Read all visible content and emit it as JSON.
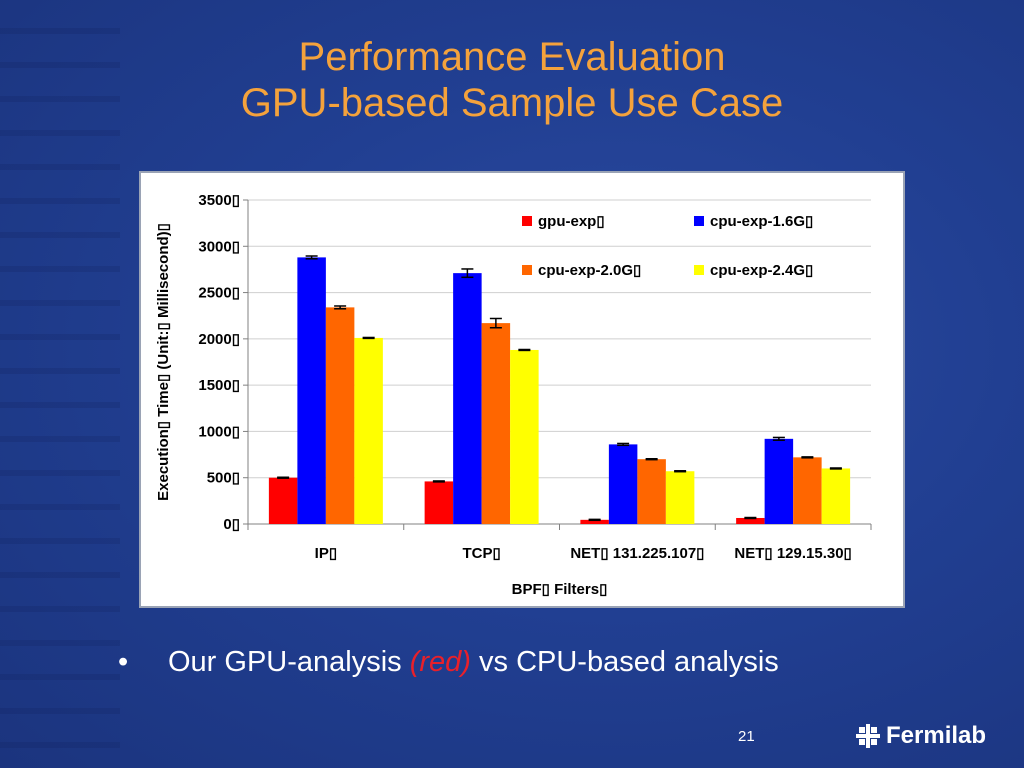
{
  "slide": {
    "title_line1": "Performance Evaluation",
    "title_line2": "GPU-based Sample Use Case",
    "bullet_prefix": "Our GPU-analysis ",
    "bullet_highlight": "(red)",
    "bullet_suffix": " vs CPU-based analysis",
    "page_number": "21",
    "logo_text": "Fermilab"
  },
  "colors": {
    "accent_title": "#f4a23c",
    "gpu_exp": "#ff0000",
    "cpu_exp_1_6G": "#0000ff",
    "cpu_exp_2_0G": "#ff6600",
    "cpu_exp_2_4G": "#ffff00"
  },
  "chart_data": {
    "type": "bar",
    "title": "",
    "xlabel": "BPF▯ Filters▯",
    "ylabel": "Execution▯ Time▯ (Unit:▯ Millisecond)▯",
    "ylim": [
      0,
      3500
    ],
    "yticks": [
      "0▯",
      "500▯",
      "1000▯",
      "1500▯",
      "2000▯",
      "2500▯",
      "3000▯",
      "3500▯"
    ],
    "ytick_values": [
      0,
      500,
      1000,
      1500,
      2000,
      2500,
      3000,
      3500
    ],
    "categories": [
      "IP▯",
      "TCP▯",
      "NET▯ 131.225.107▯",
      "NET▯ 129.15.30▯"
    ],
    "legend_position": "top-right",
    "grid": true,
    "series": [
      {
        "name": "gpu-exp▯",
        "values": [
          500,
          460,
          45,
          65
        ],
        "errors": [
          5,
          5,
          5,
          5
        ]
      },
      {
        "name": "cpu-exp-1.6G▯",
        "values": [
          2880,
          2710,
          860,
          920
        ],
        "errors": [
          15,
          45,
          10,
          15
        ]
      },
      {
        "name": "cpu-exp-2.0G▯",
        "values": [
          2340,
          2170,
          700,
          720
        ],
        "errors": [
          15,
          50,
          5,
          5
        ]
      },
      {
        "name": "cpu-exp-2.4G▯",
        "values": [
          2010,
          1880,
          570,
          600
        ],
        "errors": [
          5,
          5,
          5,
          5
        ]
      }
    ]
  }
}
